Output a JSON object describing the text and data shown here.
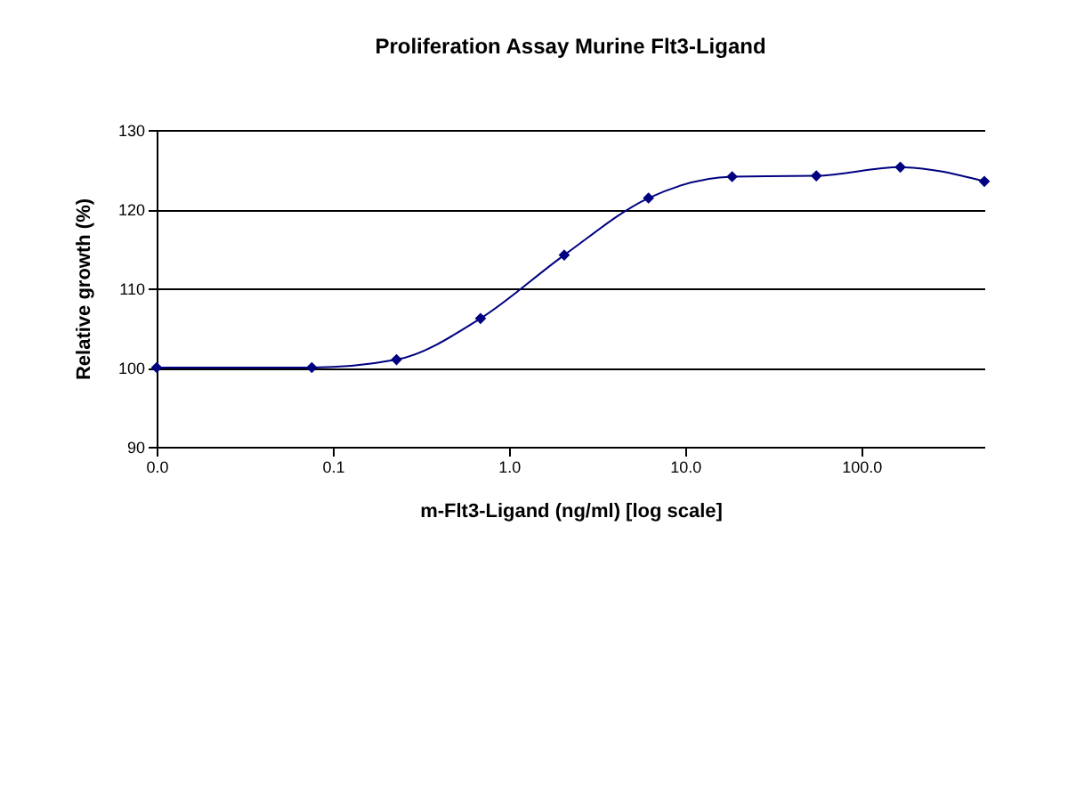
{
  "chart_data": {
    "type": "line",
    "title": "Proliferation Assay Murine Flt3-Ligand",
    "xlabel": "m-Flt3-Ligand (ng/ml) [log scale]",
    "ylabel": "Relative growth (%)",
    "x": [
      0.01,
      0.076,
      0.23,
      0.69,
      2.06,
      6.2,
      18.5,
      55.6,
      166.7,
      500
    ],
    "series": [
      {
        "color": "#000080",
        "values": [
          100,
          100,
          101.0,
          106.2,
          114.2,
          121.4,
          124.1,
          124.2,
          125.3,
          123.5
        ]
      }
    ],
    "log": "x",
    "xlim": [
      0.01,
      500
    ],
    "xticks": [
      {
        "value": 0.01,
        "label": "0.0"
      },
      0.1,
      {
        "value": 1,
        "label": "1.0"
      },
      {
        "value": 10,
        "label": "10.0"
      },
      {
        "value": 100,
        "label": "100.0"
      }
    ],
    "ylim": [
      90,
      130
    ],
    "yticks": [
      90,
      100,
      110,
      120,
      130
    ],
    "grid": "y",
    "marker": "diamond",
    "line_style": "solid"
  }
}
